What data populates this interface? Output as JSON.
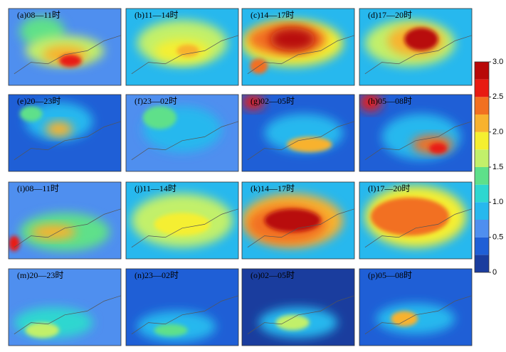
{
  "panels": [
    {
      "label": "(a)08—11时"
    },
    {
      "label": "(b)11—14时"
    },
    {
      "label": "(c)14—17时"
    },
    {
      "label": "(d)17—20时"
    },
    {
      "label": "(e)20—23时"
    },
    {
      "label": "(f)23—02时"
    },
    {
      "label": "(g)02—05时"
    },
    {
      "label": "(h)05—08时"
    },
    {
      "label": "(i)08—11时"
    },
    {
      "label": "(j)11—14时"
    },
    {
      "label": "(k)14—17时"
    },
    {
      "label": "(l)17—20时"
    },
    {
      "label": "(m)20—23时"
    },
    {
      "label": "(n)23—02时"
    },
    {
      "label": "(o)02—05时"
    },
    {
      "label": "(p)05—08时"
    }
  ],
  "colorbar": {
    "lim": [
      0,
      3
    ],
    "bins": [
      0,
      0.25,
      0.5,
      0.75,
      1,
      1.25,
      1.5,
      1.75,
      2,
      2.25,
      2.5,
      2.75,
      3
    ],
    "colors": [
      "#1a3d9e",
      "#1f5fd6",
      "#4f8fef",
      "#27b8ee",
      "#2ed7d0",
      "#5ee08a",
      "#c2f06a",
      "#f5ef30",
      "#f8b22e",
      "#f27020",
      "#e81b12",
      "#b80808"
    ],
    "ticks": [
      0,
      0.5,
      {
        "value": 1,
        "label": "1.0"
      },
      1.5,
      {
        "value": 2,
        "label": "2.0"
      },
      2.5,
      {
        "value": 3,
        "label": "3.0"
      }
    ]
  }
}
